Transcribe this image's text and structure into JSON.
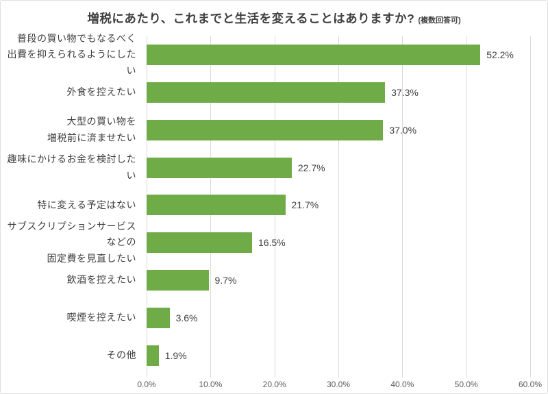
{
  "title": {
    "main": "増税にあたり、これまでと生活を変えることはありますか?",
    "suffix": "(複数回答可)"
  },
  "colors": {
    "background": "#ffffff",
    "page_border": "#e0e0e0",
    "bar": "#6FAC48",
    "gridline": "#D9D9D9",
    "title_text": "#3F3F3F",
    "category_text": "#3D3D3D",
    "value_text": "#404040",
    "tick_text": "#595959"
  },
  "chart_data": {
    "type": "bar",
    "orientation": "horizontal",
    "title": "増税にあたり、これまでと生活を変えることはありますか?(複数回答可)",
    "categories": [
      "普段の買い物でもなるべく\n出費を抑えられるようにしたい",
      "外食を控えたい",
      "大型の買い物を\n増税前に済ませたい",
      "趣味にかけるお金を検討したい",
      "特に変える予定はない",
      "サブスクリプションサービスなどの\n固定費を見直したい",
      "飲酒を控えたい",
      "喫煙を控えたい",
      "その他"
    ],
    "values": [
      52.2,
      37.3,
      37.0,
      22.7,
      21.7,
      16.5,
      9.7,
      3.6,
      1.9
    ],
    "value_labels": [
      "52.2%",
      "37.3%",
      "37.0%",
      "22.7%",
      "21.7%",
      "16.5%",
      "9.7%",
      "3.6%",
      "1.9%"
    ],
    "xlim": [
      0,
      60
    ],
    "x_tick_values": [
      0,
      10,
      20,
      30,
      40,
      50,
      60
    ],
    "x_tick_labels": [
      "0.0%",
      "10.0%",
      "20.0%",
      "30.0%",
      "40.0%",
      "50.0%",
      "60.0%"
    ],
    "grid": true,
    "legend": false,
    "xlabel": "",
    "ylabel": ""
  }
}
